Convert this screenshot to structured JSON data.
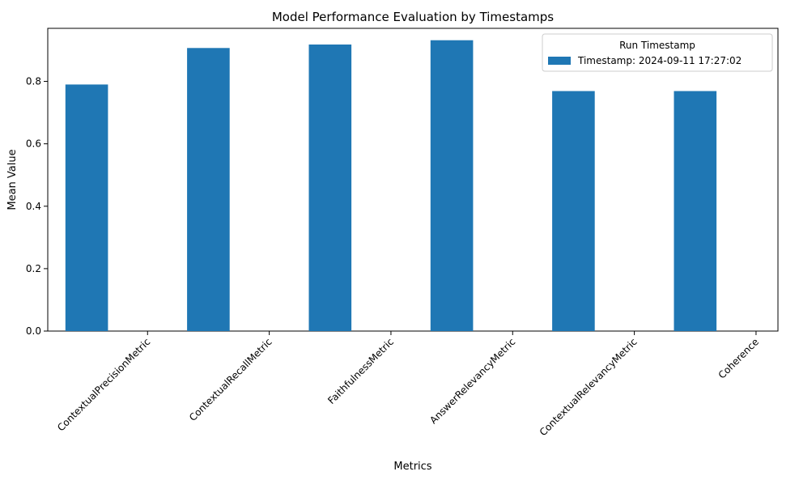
{
  "chart_data": {
    "type": "bar",
    "title": "Model Performance Evaluation by Timestamps",
    "xlabel": "Metrics",
    "ylabel": "Mean Value",
    "categories": [
      "ContextualPrecisionMetric",
      "ContextualRecallMetric",
      "FaithfulnessMetric",
      "AnswerRelevancyMetric",
      "ContextualRelevancyMetric",
      "Coherence"
    ],
    "series": [
      {
        "name": "Timestamp: 2024-09-11 17:27:02",
        "values": [
          0.79,
          0.907,
          0.918,
          0.932,
          0.769,
          0.769
        ],
        "color": "#1f77b4"
      }
    ],
    "ylim": [
      0,
      0.97
    ],
    "yticks": [
      0.0,
      0.2,
      0.4,
      0.6,
      0.8
    ],
    "ytick_labels": [
      "0.0",
      "0.2",
      "0.4",
      "0.6",
      "0.8"
    ],
    "grid": false,
    "legend": {
      "title": "Run Timestamp",
      "position": "top-right"
    }
  }
}
